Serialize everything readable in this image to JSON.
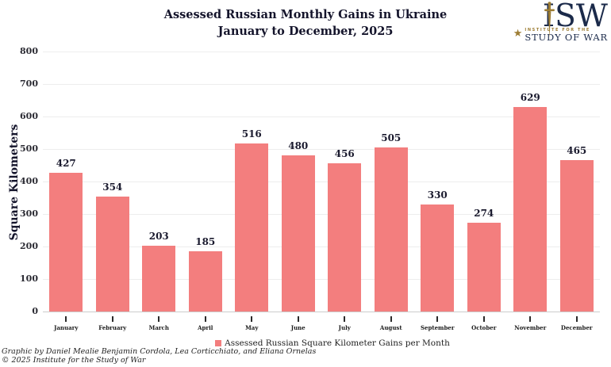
{
  "header": {
    "title_line1": "Assessed Russian Monthly Gains in Ukraine",
    "title_line2": "January to December, 2025"
  },
  "logo": {
    "acronym": "ISW",
    "star": "★",
    "line1": "INSTITUTE FOR THE",
    "line2": "STUDY OF WAR",
    "navy_color": "#1B2A4A",
    "gold_color": "#9D7D34"
  },
  "legend": {
    "label": "Assessed Russian Square Kilometer Gains per Month",
    "swatch_color": "#F37E7E"
  },
  "footer": {
    "credit": "Graphic by Daniel Mealie Benjamin Cordola, Lea Corticchiato, and Eliana Ornelas",
    "copyright": "© 2025 Institute for the Study of War"
  },
  "chart_data": {
    "type": "bar",
    "title": "Assessed Russian Monthly Gains in Ukraine",
    "subtitle": "January to December, 2025",
    "categories": [
      "January",
      "February",
      "March",
      "April",
      "May",
      "June",
      "July",
      "August",
      "September",
      "October",
      "November",
      "December"
    ],
    "values": [
      427,
      354,
      203,
      185,
      516,
      480,
      456,
      505,
      330,
      274,
      629,
      465
    ],
    "xlabel": "",
    "ylabel": "Square Kilometers",
    "ylim": [
      0,
      800
    ],
    "ytick_step": 100,
    "grid": true,
    "legend_position": "bottom",
    "bar_color": "#F37E7E",
    "value_labels_shown": true
  }
}
